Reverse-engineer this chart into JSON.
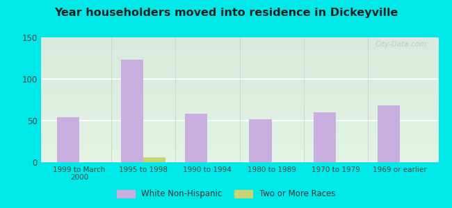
{
  "title": "Year householders moved into residence in Dickeyville",
  "categories": [
    "1999 to March\n2000",
    "1995 to 1998",
    "1990 to 1994",
    "1980 to 1989",
    "1970 to 1979",
    "1969 or earlier"
  ],
  "white_non_hispanic": [
    54,
    123,
    58,
    52,
    60,
    68
  ],
  "two_or_more_races": [
    0,
    6,
    0,
    0,
    0,
    0
  ],
  "white_color": "#c9aee0",
  "two_races_color": "#c8d470",
  "background_outer": "#00e8e8",
  "ylim": [
    0,
    150
  ],
  "yticks": [
    0,
    50,
    100,
    150
  ],
  "bar_width": 0.35,
  "legend_labels": [
    "White Non-Hispanic",
    "Two or More Races"
  ],
  "watermark": "City-Data.com"
}
